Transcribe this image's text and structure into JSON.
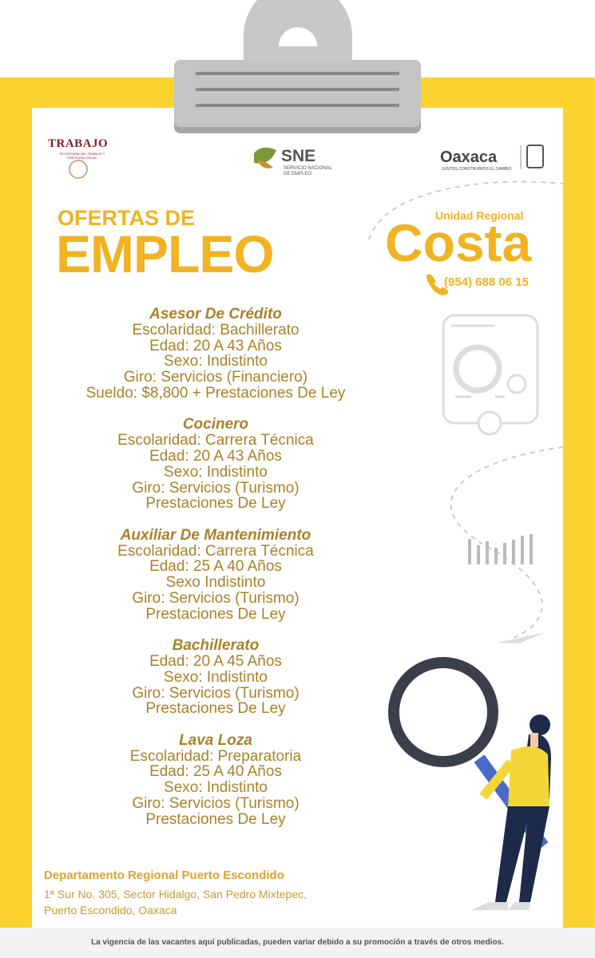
{
  "logos": {
    "trabajo": "TRABAJO",
    "trabajo_sub": "SECRETARÍA DEL TRABAJO Y PREVISIÓN SOCIAL",
    "sne": "SNE",
    "sne_sub": "SERVICIO NACIONAL DE EMPLEO",
    "oaxaca": "Oaxaca",
    "oaxaca_sub": "JUNTOS CONSTRUIMOS EL CAMBIO"
  },
  "header": {
    "title_small": "OFERTAS DE",
    "title_big": "EMPLEO",
    "unit_label": "Unidad Regional",
    "unit_name": "Costa",
    "phone": "(954) 688 06 15"
  },
  "jobs": [
    {
      "title": "Asesor De Crédito",
      "lines": [
        "Escolaridad: Bachillerato",
        "Edad: 20 A 43 Años",
        "Sexo: Indistinto",
        "Giro: Servicios (Financiero)",
        "Sueldo: $8,800 + Prestaciones De Ley"
      ]
    },
    {
      "title": "Cocinero",
      "lines": [
        "Escolaridad: Carrera Técnica",
        "Edad: 20 A 43 Años",
        "Sexo: Indistinto",
        "Giro: Servicios (Turismo)",
        "Prestaciones De Ley"
      ]
    },
    {
      "title": "Auxiliar De Mantenimiento",
      "lines": [
        "Escolaridad: Carrera Técnica",
        "Edad: 25 A 40 Años",
        "Sexo Indistinto",
        "Giro: Servicios (Turismo)",
        "Prestaciones De Ley"
      ]
    },
    {
      "title": "Bachillerato",
      "lines": [
        "Edad: 20 A 45 Años",
        "Sexo: Indistinto",
        "Giro: Servicios (Turismo)",
        "Prestaciones De Ley"
      ]
    },
    {
      "title": "Lava Loza",
      "lines": [
        "Escolaridad: Preparatoria",
        "Edad: 25 A 40 Años",
        "Sexo: Indistinto",
        "Giro: Servicios (Turismo)",
        "Prestaciones De Ley"
      ]
    }
  ],
  "footer": {
    "department": "Departamento Regional Puerto Escondido",
    "address": [
      "1ª Sur No. 305, Sector Hidalgo, San Pedro Mixtepec,",
      "Puerto Escondido, Oaxaca"
    ],
    "disclaimer": "La vigencia de las vacantes aquí publicadas, pueden variar debido a su promoción a través de otros medios."
  }
}
